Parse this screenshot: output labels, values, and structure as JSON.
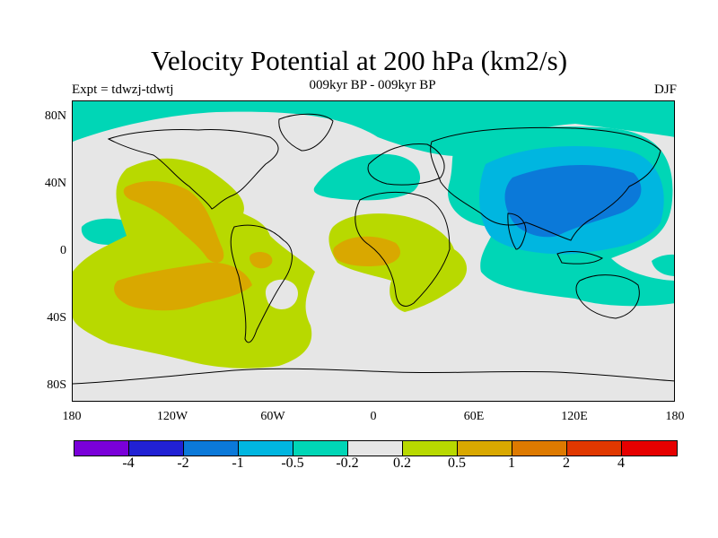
{
  "title": "Velocity Potential at 200 hPa (km2/s)",
  "subtitle": "009kyr BP - 009kyr BP",
  "left_label": "Expt = tdwzj-tdwtj",
  "right_label": "DJF",
  "y_labels": [
    "80N",
    "40N",
    "0",
    "40S",
    "80S"
  ],
  "x_labels": [
    "180",
    "120W",
    "60W",
    "0",
    "60E",
    "120E",
    "180"
  ],
  "colorbar": {
    "colors": [
      "#7a00d9",
      "#2121d4",
      "#0b79d9",
      "#00b6e0",
      "#00d6b6",
      "#e6e6e6",
      "#b8d900",
      "#d9a800",
      "#de7a00",
      "#e03800",
      "#e60000"
    ],
    "labels": [
      "-4",
      "-2",
      "-1",
      "-0.5",
      "-0.2",
      "0.2",
      "0.5",
      "1",
      "2",
      "4"
    ]
  }
}
